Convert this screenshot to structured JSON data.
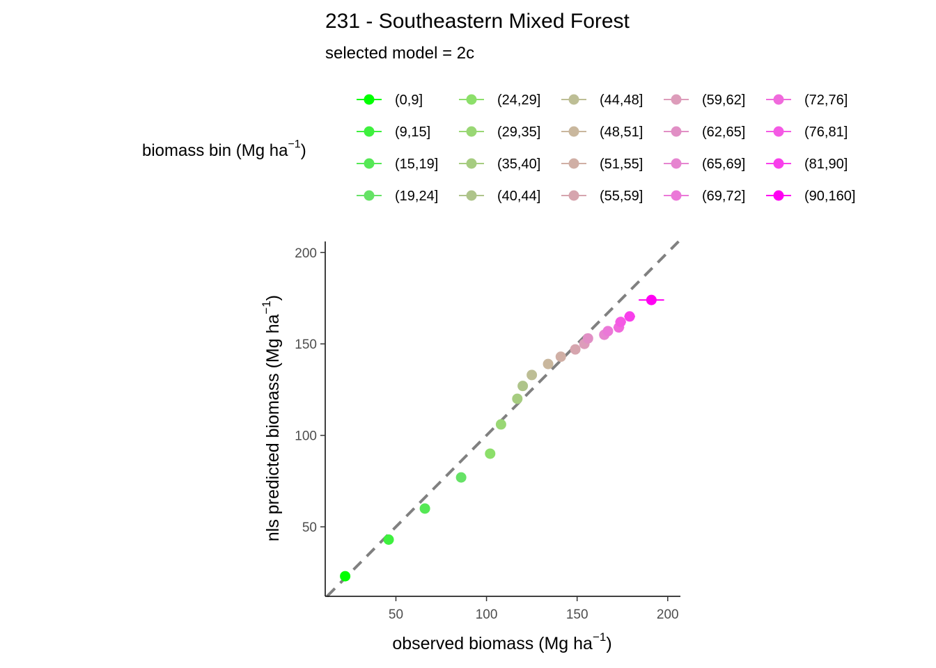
{
  "chart_data": {
    "type": "scatter",
    "title": "231 -  Southeastern Mixed Forest",
    "subtitle": "selected model = 2c",
    "legend": {
      "title_text": "biomass bin (Mg ha",
      "title_sup": "−1",
      "title_close": ")",
      "placement": "top",
      "entries": [
        {
          "label": "(0,9]",
          "color": "#00FF00"
        },
        {
          "label": "(9,15]",
          "color": "#3EF03E"
        },
        {
          "label": "(15,19]",
          "color": "#55E855"
        },
        {
          "label": "(19,24]",
          "color": "#66E266"
        },
        {
          "label": "(24,29]",
          "color": "#8CDF6A"
        },
        {
          "label": "(29,35]",
          "color": "#99D774"
        },
        {
          "label": "(35,40]",
          "color": "#A6CC80"
        },
        {
          "label": "(40,44]",
          "color": "#AEC48A"
        },
        {
          "label": "(44,48]",
          "color": "#BDBE95"
        },
        {
          "label": "(48,51]",
          "color": "#C9B79D"
        },
        {
          "label": "(51,55]",
          "color": "#D0AFA5"
        },
        {
          "label": "(55,59]",
          "color": "#D6A5AE"
        },
        {
          "label": "(59,62]",
          "color": "#DD9CBA"
        },
        {
          "label": "(62,65]",
          "color": "#E18FC5"
        },
        {
          "label": "(65,69]",
          "color": "#E685D0"
        },
        {
          "label": "(69,72]",
          "color": "#EB78D8"
        },
        {
          "label": "(72,76]",
          "color": "#F06ADC"
        },
        {
          "label": "(76,81]",
          "color": "#F45AE4"
        },
        {
          "label": "(81,90]",
          "color": "#F83FEB"
        },
        {
          "label": "(90,160]",
          "color": "#FF00F2"
        }
      ]
    },
    "xlabel_text": "observed biomass (Mg ha",
    "xlabel_sup": "−1",
    "xlabel_close": ")",
    "ylabel_text": "nls predicted biomass (Mg ha",
    "ylabel_sup": "−1",
    "ylabel_close": ")",
    "xlim": [
      11,
      207
    ],
    "ylim": [
      12,
      206
    ],
    "xticks": [
      50,
      100,
      150,
      200
    ],
    "yticks": [
      50,
      100,
      150,
      200
    ],
    "grid": false,
    "reference_line": {
      "type": "identity",
      "style": "dashed",
      "color": "#808080"
    },
    "points": [
      {
        "bin": "(0,9]",
        "x": 22,
        "y": 23,
        "xerr": 1.5
      },
      {
        "bin": "(9,15]",
        "x": 46,
        "y": 43,
        "xerr": 1.5
      },
      {
        "bin": "(15,19]",
        "x": 66,
        "y": 60,
        "xerr": 1.5
      },
      {
        "bin": "(19,24]",
        "x": 86,
        "y": 77,
        "xerr": 1.5
      },
      {
        "bin": "(24,29]",
        "x": 102,
        "y": 90,
        "xerr": 2
      },
      {
        "bin": "(29,35]",
        "x": 108,
        "y": 106,
        "xerr": 2
      },
      {
        "bin": "(35,40]",
        "x": 117,
        "y": 120,
        "xerr": 2
      },
      {
        "bin": "(40,44]",
        "x": 120,
        "y": 127,
        "xerr": 2
      },
      {
        "bin": "(44,48]",
        "x": 125,
        "y": 133,
        "xerr": 2
      },
      {
        "bin": "(48,51]",
        "x": 134,
        "y": 139,
        "xerr": 2.5
      },
      {
        "bin": "(51,55]",
        "x": 141,
        "y": 143,
        "xerr": 2.5
      },
      {
        "bin": "(55,59]",
        "x": 149,
        "y": 147,
        "xerr": 2.5
      },
      {
        "bin": "(59,62]",
        "x": 154,
        "y": 150,
        "xerr": 2.5
      },
      {
        "bin": "(62,65]",
        "x": 156,
        "y": 153,
        "xerr": 2.5
      },
      {
        "bin": "(65,69]",
        "x": 165,
        "y": 155,
        "xerr": 2.5
      },
      {
        "bin": "(69,72]",
        "x": 167,
        "y": 157,
        "xerr": 2.5
      },
      {
        "bin": "(72,76]",
        "x": 173,
        "y": 159,
        "xerr": 3
      },
      {
        "bin": "(76,81]",
        "x": 174,
        "y": 162,
        "xerr": 3
      },
      {
        "bin": "(81,90]",
        "x": 179,
        "y": 165,
        "xerr": 3
      },
      {
        "bin": "(90,160]",
        "x": 191,
        "y": 174,
        "xerr": 7
      }
    ]
  }
}
